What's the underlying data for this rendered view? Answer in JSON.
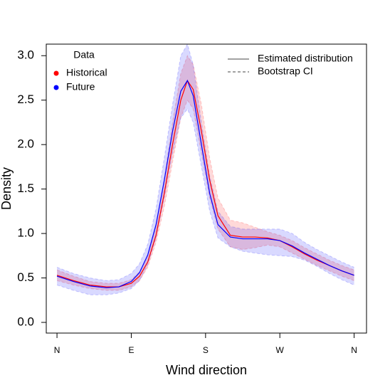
{
  "chart_data": {
    "type": "density-band",
    "x_label": "Wind direction",
    "y_label": "Density",
    "legend_title": "Data",
    "line_legend": [
      "Estimated distribution",
      "Bootstrap CI"
    ],
    "xlim": [
      -13,
      375
    ],
    "ylim": [
      -0.12,
      3.13
    ],
    "xticks": [
      {
        "value": 0,
        "label": "N"
      },
      {
        "value": 90,
        "label": "E"
      },
      {
        "value": 180,
        "label": "S"
      },
      {
        "value": 270,
        "label": "W"
      },
      {
        "value": 360,
        "label": "N"
      }
    ],
    "yticks": [
      {
        "value": 0,
        "label": "0.0"
      },
      0.5,
      {
        "value": 1,
        "label": "1.0"
      },
      1.5,
      {
        "value": 2,
        "label": "2.0"
      },
      2.5,
      {
        "value": 3,
        "label": "3.0"
      }
    ],
    "x": [
      0,
      20,
      40,
      60,
      75,
      90,
      100,
      110,
      120,
      130,
      140,
      150,
      158,
      165,
      175,
      185,
      195,
      210,
      225,
      240,
      255,
      270,
      285,
      300,
      315,
      330,
      345,
      360
    ],
    "series": [
      {
        "name": "Historical",
        "color": "#ff0000",
        "values": [
          0.53,
          0.47,
          0.42,
          0.4,
          0.4,
          0.44,
          0.52,
          0.68,
          0.98,
          1.45,
          2.0,
          2.5,
          2.72,
          2.62,
          2.15,
          1.6,
          1.2,
          0.98,
          0.96,
          0.96,
          0.95,
          0.92,
          0.85,
          0.77,
          0.7,
          0.64,
          0.58,
          0.53
        ],
        "lower": [
          0.47,
          0.42,
          0.38,
          0.36,
          0.36,
          0.4,
          0.47,
          0.62,
          0.9,
          1.3,
          1.8,
          2.3,
          2.5,
          2.4,
          1.9,
          1.4,
          1.05,
          0.85,
          0.82,
          0.84,
          0.87,
          0.85,
          0.78,
          0.71,
          0.64,
          0.58,
          0.52,
          0.47
        ],
        "upper": [
          0.59,
          0.52,
          0.46,
          0.44,
          0.44,
          0.48,
          0.57,
          0.75,
          1.08,
          1.62,
          2.25,
          2.8,
          3.0,
          2.9,
          2.45,
          1.85,
          1.4,
          1.15,
          1.12,
          1.07,
          1.02,
          0.98,
          0.92,
          0.84,
          0.77,
          0.7,
          0.64,
          0.59
        ]
      },
      {
        "name": "Future",
        "color": "#0000ff",
        "values": [
          0.52,
          0.46,
          0.41,
          0.39,
          0.4,
          0.46,
          0.56,
          0.76,
          1.1,
          1.6,
          2.15,
          2.6,
          2.72,
          2.55,
          2.0,
          1.45,
          1.1,
          0.96,
          0.94,
          0.94,
          0.94,
          0.92,
          0.86,
          0.78,
          0.71,
          0.64,
          0.58,
          0.53
        ],
        "lower": [
          0.42,
          0.36,
          0.31,
          0.31,
          0.33,
          0.38,
          0.47,
          0.65,
          0.95,
          1.4,
          1.9,
          2.3,
          2.4,
          2.25,
          1.75,
          1.25,
          0.95,
          0.85,
          0.8,
          0.78,
          0.76,
          0.75,
          0.74,
          0.7,
          0.63,
          0.55,
          0.48,
          0.42
        ],
        "upper": [
          0.62,
          0.55,
          0.5,
          0.47,
          0.48,
          0.55,
          0.66,
          0.88,
          1.28,
          1.85,
          2.45,
          3.0,
          3.13,
          2.9,
          2.25,
          1.65,
          1.25,
          1.08,
          1.05,
          1.05,
          1.05,
          1.05,
          1.0,
          0.9,
          0.82,
          0.75,
          0.68,
          0.62
        ]
      }
    ]
  }
}
